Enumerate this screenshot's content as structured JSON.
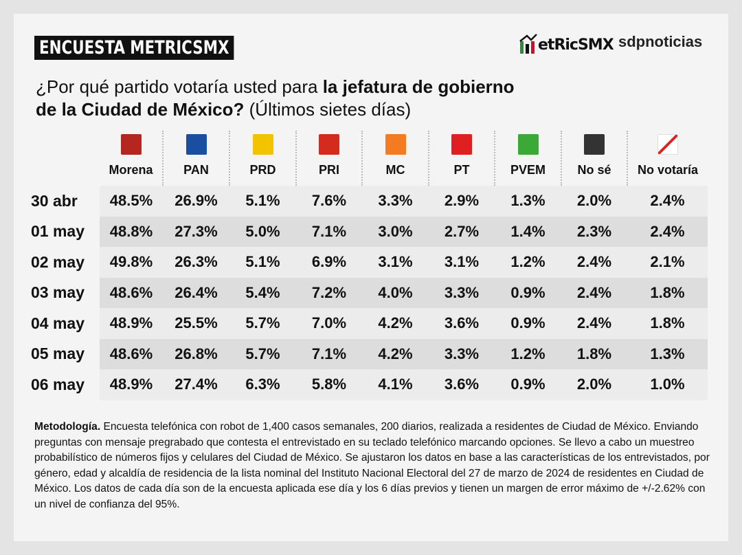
{
  "header": {
    "badge": "ENCUESTA METRICSMX",
    "logo": "etRicSMX",
    "partner": "sdpnoticias"
  },
  "question": {
    "lead": "¿Por qué partido votaría usted para ",
    "bold1": "la jefatura de gobierno",
    "bold2": "de la Ciudad de México?",
    "tail": " (Últimos sietes días)"
  },
  "table": {
    "columns": [
      {
        "name": "Morena",
        "color": "#b5261e"
      },
      {
        "name": "PAN",
        "color": "#1a4ea0"
      },
      {
        "name": "PRD",
        "color": "#f4c300"
      },
      {
        "name": "PRI",
        "color": "#d52b1e"
      },
      {
        "name": "MC",
        "color": "#f47b20"
      },
      {
        "name": "PT",
        "color": "#e02020"
      },
      {
        "name": "PVEM",
        "color": "#3aa935"
      },
      {
        "name": "No sé",
        "color": "#333333"
      },
      {
        "name": "No votaría",
        "color": "#ffffff"
      }
    ],
    "rows": [
      {
        "date": "30 abr",
        "values": [
          "48.5%",
          "26.9%",
          "5.1%",
          "7.6%",
          "3.3%",
          "2.9%",
          "1.3%",
          "2.0%",
          "2.4%"
        ]
      },
      {
        "date": "01 may",
        "values": [
          "48.8%",
          "27.3%",
          "5.0%",
          "7.1%",
          "3.0%",
          "2.7%",
          "1.4%",
          "2.3%",
          "2.4%"
        ]
      },
      {
        "date": "02 may",
        "values": [
          "49.8%",
          "26.3%",
          "5.1%",
          "6.9%",
          "3.1%",
          "3.1%",
          "1.2%",
          "2.4%",
          "2.1%"
        ]
      },
      {
        "date": "03 may",
        "values": [
          "48.6%",
          "26.4%",
          "5.4%",
          "7.2%",
          "4.0%",
          "3.3%",
          "0.9%",
          "2.4%",
          "1.8%"
        ]
      },
      {
        "date": "04 may",
        "values": [
          "48.9%",
          "25.5%",
          "5.7%",
          "7.0%",
          "4.2%",
          "3.6%",
          "0.9%",
          "2.4%",
          "1.8%"
        ]
      },
      {
        "date": "05 may",
        "values": [
          "48.6%",
          "26.8%",
          "5.7%",
          "7.1%",
          "4.2%",
          "3.3%",
          "1.2%",
          "1.8%",
          "1.3%"
        ]
      },
      {
        "date": "06 may",
        "values": [
          "48.9%",
          "27.4%",
          "6.3%",
          "5.8%",
          "4.1%",
          "3.6%",
          "0.9%",
          "2.0%",
          "1.0%"
        ]
      }
    ]
  },
  "methodology": {
    "label": "Metodología.",
    "text": " Encuesta telefónica con robot de 1,400 casos semanales, 200 diarios, realizada a residentes de Ciudad de México. Enviando preguntas con mensaje pregrabado que contesta el entrevistado en su teclado telefónico marcando opciones. Se llevo a cabo un muestreo probabilístico de números fijos y celulares del Ciudad de México. Se ajustaron los datos en base a las características de los entrevistados, por género, edad y alcaldía de residencia de la lista nominal del Instituto Nacional Electoral del 27 de marzo de 2024 de residentes en Ciudad de México. Los datos de cada día son de la encuesta aplicada ese día y los 6 días previos y tienen un margen de error máximo de +/-2.62% con un nivel de confianza del 95%."
  }
}
